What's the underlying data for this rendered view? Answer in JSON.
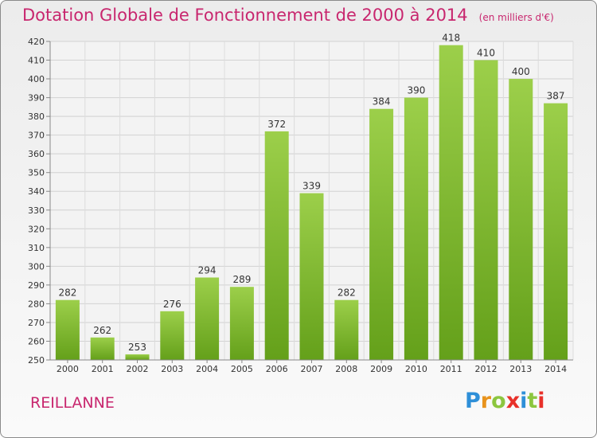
{
  "title": "Dotation Globale de Fonctionnement de 2000 à 2014",
  "unit_note": "(en milliers d'€)",
  "commune": "REILLANNE",
  "logo": {
    "text": "Proxiti",
    "letter_colors": [
      "#2e8fd8",
      "#e8931c",
      "#8cc63f",
      "#e8312a",
      "#2e8fd8",
      "#8cc63f",
      "#e8312a"
    ]
  },
  "colors": {
    "bar_top": "#9ccf4a",
    "bar_bottom": "#64a01a",
    "text_accent": "#c8266e"
  },
  "chart_data": {
    "type": "bar",
    "categories": [
      "2000",
      "2001",
      "2002",
      "2003",
      "2004",
      "2005",
      "2006",
      "2007",
      "2008",
      "2009",
      "2010",
      "2011",
      "2012",
      "2013",
      "2014"
    ],
    "values": [
      282,
      262,
      253,
      276,
      294,
      289,
      372,
      339,
      282,
      384,
      390,
      418,
      410,
      400,
      387
    ],
    "ylim": [
      250,
      420
    ],
    "y_ticks": [
      250,
      260,
      270,
      280,
      290,
      300,
      310,
      320,
      330,
      340,
      350,
      360,
      370,
      380,
      390,
      400,
      410,
      420
    ],
    "grid": true,
    "xlabel": "",
    "ylabel": ""
  }
}
